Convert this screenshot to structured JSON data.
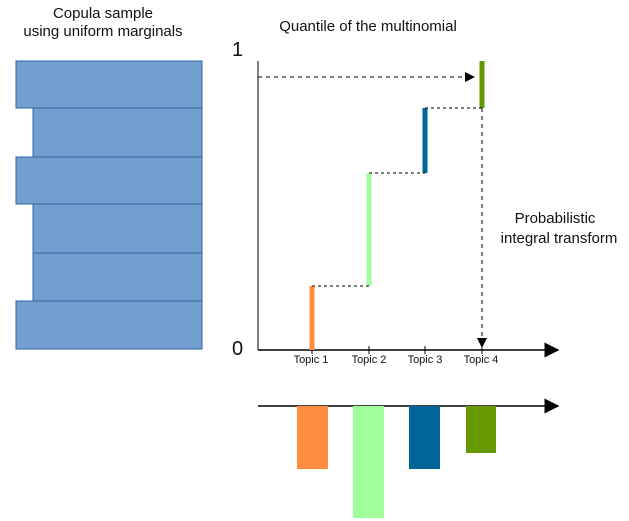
{
  "labels": {
    "left_title_line1": "Copula sample",
    "left_title_line2": "using uniform marginals",
    "right_title": "Quantile of the multinomial",
    "y_top": "1",
    "y_bottom": "0",
    "pit_line1": "Probabilistic",
    "pit_line2": "integral transform"
  },
  "categories": [
    "Topic 1",
    "Topic 2",
    "Topic 3",
    "Topic 4"
  ],
  "colors": {
    "topic1": "#ff8d3f",
    "topic2": "#9fff9a",
    "topic3": "#006699",
    "topic4": "#669900",
    "copula_fill": "#729fcf",
    "copula_stroke": "#3465a4",
    "axis": "#000000"
  }
}
